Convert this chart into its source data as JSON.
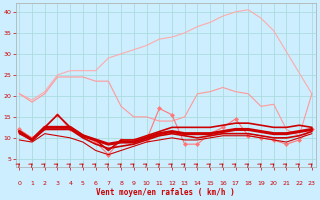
{
  "bg_color": "#cceeff",
  "grid_color": "#aadddd",
  "xlabel": "Vent moyen/en rafales ( km/h )",
  "xlabel_color": "#cc0000",
  "tick_color": "#cc0000",
  "x": [
    0,
    1,
    2,
    3,
    4,
    5,
    6,
    7,
    8,
    9,
    10,
    11,
    12,
    13,
    14,
    15,
    16,
    17,
    18,
    19,
    20,
    21,
    22,
    23
  ],
  "series": [
    {
      "name": "upper_envelope",
      "color": "#ffaaaa",
      "lw": 0.8,
      "values": [
        20.5,
        19.0,
        21.0,
        25.0,
        26.0,
        26.0,
        26.0,
        29.0,
        30.0,
        31.0,
        32.0,
        33.5,
        34.0,
        35.0,
        36.5,
        37.5,
        39.0,
        40.0,
        40.5,
        38.5,
        35.5,
        30.5,
        25.5,
        20.5
      ]
    },
    {
      "name": "upper_mid",
      "color": "#ff9999",
      "lw": 0.8,
      "values": [
        20.5,
        18.5,
        20.5,
        24.5,
        24.5,
        24.5,
        23.5,
        23.5,
        17.5,
        15.0,
        15.0,
        14.0,
        14.0,
        15.0,
        20.5,
        21.0,
        22.0,
        21.0,
        20.5,
        17.5,
        18.0,
        12.0,
        10.5,
        20.5
      ]
    },
    {
      "name": "avg_gust_markers",
      "color": "#ff7777",
      "lw": 0.8,
      "marker": "D",
      "markersize": 2.0,
      "values": [
        12.0,
        10.0,
        12.5,
        15.5,
        12.0,
        10.5,
        9.0,
        6.0,
        9.5,
        9.5,
        9.5,
        17.0,
        15.5,
        8.5,
        8.5,
        11.0,
        12.5,
        14.5,
        10.5,
        10.0,
        9.5,
        8.5,
        9.5,
        12.0
      ]
    },
    {
      "name": "avg_wind_max",
      "color": "#cc0000",
      "lw": 1.2,
      "values": [
        11.5,
        9.5,
        12.5,
        15.5,
        12.5,
        10.5,
        9.5,
        7.0,
        9.5,
        9.5,
        10.5,
        11.5,
        12.5,
        12.5,
        12.5,
        12.5,
        13.0,
        13.5,
        13.5,
        13.0,
        12.5,
        12.5,
        13.0,
        12.5
      ]
    },
    {
      "name": "avg_wind_bold",
      "color": "#cc0000",
      "lw": 2.2,
      "values": [
        11.5,
        9.5,
        12.5,
        12.5,
        12.5,
        10.5,
        9.5,
        8.5,
        9.0,
        9.0,
        10.0,
        11.0,
        11.5,
        11.0,
        11.0,
        11.0,
        11.5,
        12.0,
        12.0,
        11.5,
        11.0,
        11.0,
        11.5,
        12.0
      ]
    },
    {
      "name": "avg_wind_low",
      "color": "#cc0000",
      "lw": 1.2,
      "values": [
        11.0,
        9.5,
        12.0,
        12.0,
        12.0,
        10.0,
        8.5,
        7.5,
        8.0,
        8.5,
        9.5,
        10.5,
        11.0,
        10.5,
        10.0,
        10.5,
        11.0,
        11.0,
        11.0,
        10.5,
        10.0,
        10.0,
        10.5,
        11.5
      ]
    },
    {
      "name": "min_wind",
      "color": "#cc0000",
      "lw": 0.8,
      "values": [
        9.5,
        9.0,
        11.0,
        10.5,
        10.0,
        9.0,
        7.0,
        6.0,
        7.0,
        8.0,
        9.0,
        9.5,
        10.0,
        9.5,
        9.5,
        10.0,
        10.5,
        10.5,
        10.5,
        10.0,
        9.5,
        9.0,
        10.0,
        11.0
      ]
    }
  ],
  "ylim": [
    3,
    42
  ],
  "yticks": [
    5,
    10,
    15,
    20,
    25,
    30,
    35,
    40
  ],
  "xlim": [
    -0.3,
    23.3
  ],
  "xticks": [
    0,
    1,
    2,
    3,
    4,
    5,
    6,
    7,
    8,
    9,
    10,
    11,
    12,
    13,
    14,
    15,
    16,
    17,
    18,
    19,
    20,
    21,
    22,
    23
  ]
}
